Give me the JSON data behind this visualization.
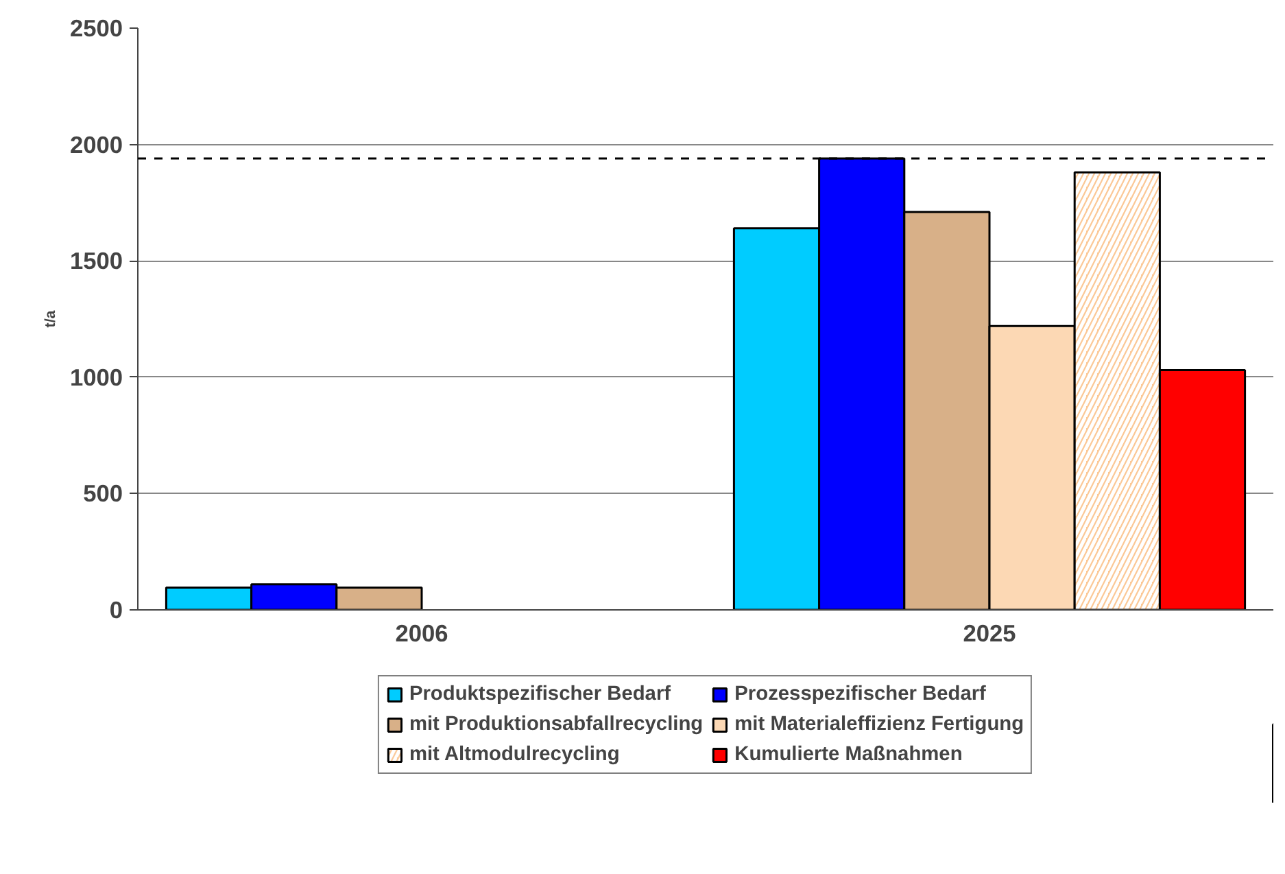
{
  "chart_data": {
    "type": "bar",
    "ylabel": "t/a",
    "categories": [
      "2006",
      "2025"
    ],
    "series": [
      {
        "name": "Produktspezifischer Bedarf",
        "color": "#00ccff",
        "values": [
          96,
          1640
        ]
      },
      {
        "name": "Prozesspezifischer Bedarf",
        "color": "#0000ff",
        "values": [
          110,
          1940
        ]
      },
      {
        "name": "mit Produktionsabfallrecycling",
        "color": "#d8b088",
        "values": [
          96,
          1710
        ]
      },
      {
        "name": "mit Materialeffizienz Fertigung",
        "color": "#fcd8b4",
        "values": [
          null,
          1220
        ]
      },
      {
        "name": "mit Altmodulrecycling",
        "color": "#fbc896",
        "values": [
          null,
          1880
        ]
      },
      {
        "name": "Kumulierte Maßnahmen",
        "color": "#ff0000",
        "values": [
          null,
          1030
        ]
      }
    ],
    "ylim": [
      0,
      2500
    ],
    "yticks": [
      0,
      500,
      1000,
      1500,
      2000,
      2500
    ],
    "ref_lines": [
      {
        "axis": "y",
        "value": 1940,
        "line_style": "dashed"
      }
    ],
    "grid": "y",
    "legend": "bottom"
  }
}
